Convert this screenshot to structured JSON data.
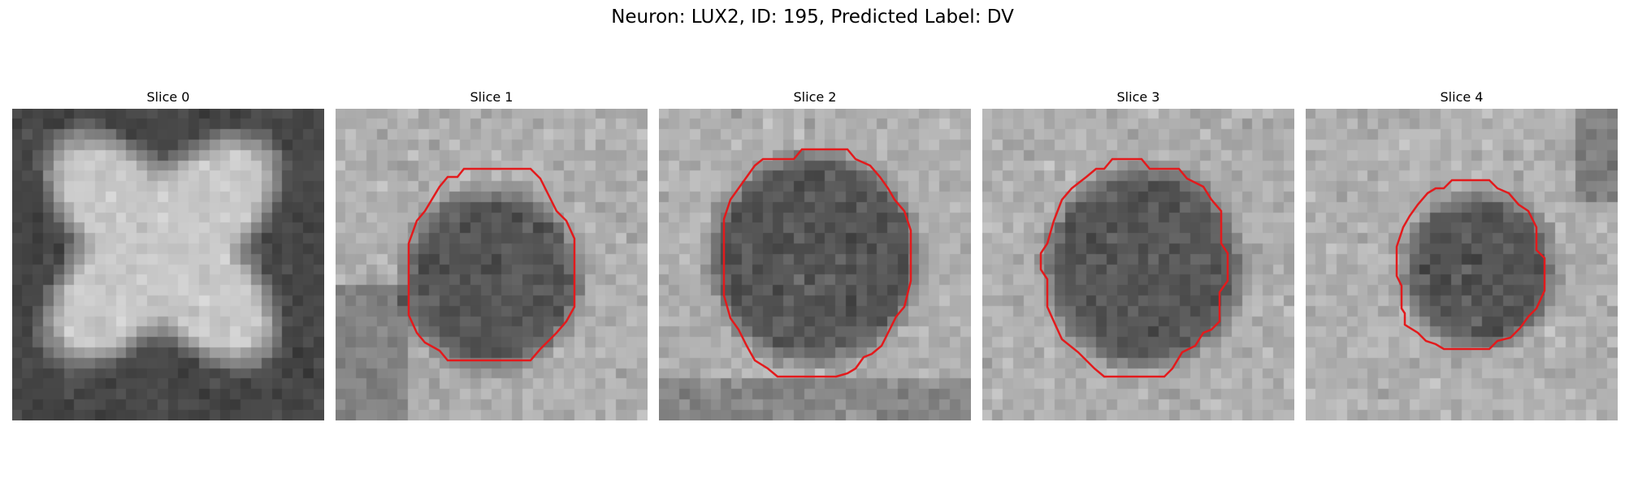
{
  "figure": {
    "title": "Neuron: LUX2, ID: 195, Predicted Label: DV"
  },
  "panels": [
    {
      "title": "Slice 0",
      "has_contour": false
    },
    {
      "title": "Slice 1",
      "has_contour": true
    },
    {
      "title": "Slice 2",
      "has_contour": true
    },
    {
      "title": "Slice 3",
      "has_contour": true
    },
    {
      "title": "Slice 4",
      "has_contour": true
    }
  ],
  "colors": {
    "contour": "#e31a1c",
    "background": "#ffffff"
  }
}
